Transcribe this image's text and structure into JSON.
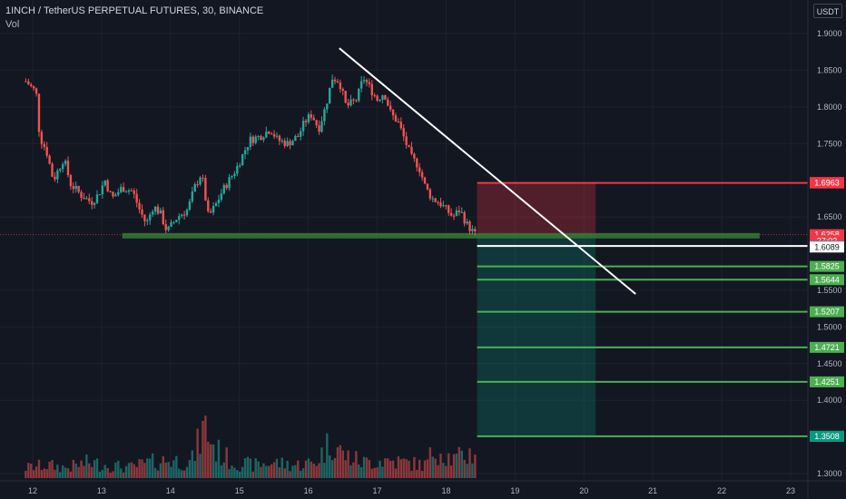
{
  "header": {
    "title": "1INCH / TetherUS PERPETUAL FUTURES, 30, BINANCE",
    "volume_label": "Vol",
    "currency": "USDT"
  },
  "chart_data": {
    "type": "candlestick",
    "symbol": "1INCH / TetherUS PERPETUAL FUTURES",
    "interval": "30",
    "exchange": "BINANCE",
    "y_axis": {
      "min": 1.3,
      "max": 1.9,
      "ticks": [
        1.9,
        1.85,
        1.8,
        1.75,
        1.65,
        1.55,
        1.5,
        1.45,
        1.4,
        1.3
      ],
      "tick_labels": [
        "1.9000",
        "1.8500",
        "1.8000",
        "1.7500",
        "1.6500",
        "1.5500",
        "1.5000",
        "1.4500",
        "1.4000",
        "1.3000"
      ]
    },
    "x_axis": {
      "ticks": [
        12,
        13,
        14,
        15,
        16,
        17,
        18,
        19,
        20,
        21,
        22,
        23
      ],
      "tick_labels": [
        "12",
        "13",
        "14",
        "15",
        "16",
        "17",
        "18",
        "19",
        "20",
        "21",
        "22",
        "23"
      ]
    },
    "price_series": [
      [
        11.9,
        1.835
      ],
      [
        12.05,
        1.82
      ],
      [
        12.1,
        1.76
      ],
      [
        12.2,
        1.74
      ],
      [
        12.3,
        1.7
      ],
      [
        12.45,
        1.73
      ],
      [
        12.55,
        1.695
      ],
      [
        12.7,
        1.68
      ],
      [
        12.85,
        1.67
      ],
      [
        12.95,
        1.68
      ],
      [
        13.05,
        1.7
      ],
      [
        13.15,
        1.675
      ],
      [
        13.3,
        1.69
      ],
      [
        13.45,
        1.685
      ],
      [
        13.55,
        1.66
      ],
      [
        13.65,
        1.64
      ],
      [
        13.75,
        1.665
      ],
      [
        13.85,
        1.655
      ],
      [
        13.95,
        1.63
      ],
      [
        14.1,
        1.65
      ],
      [
        14.25,
        1.66
      ],
      [
        14.35,
        1.69
      ],
      [
        14.45,
        1.71
      ],
      [
        14.55,
        1.65
      ],
      [
        14.65,
        1.665
      ],
      [
        14.75,
        1.685
      ],
      [
        14.85,
        1.7
      ],
      [
        14.95,
        1.715
      ],
      [
        15.05,
        1.735
      ],
      [
        15.15,
        1.755
      ],
      [
        15.3,
        1.76
      ],
      [
        15.45,
        1.77
      ],
      [
        15.55,
        1.755
      ],
      [
        15.7,
        1.75
      ],
      [
        15.85,
        1.76
      ],
      [
        15.95,
        1.78
      ],
      [
        16.05,
        1.79
      ],
      [
        16.15,
        1.77
      ],
      [
        16.25,
        1.8
      ],
      [
        16.35,
        1.84
      ],
      [
        16.45,
        1.835
      ],
      [
        16.55,
        1.8
      ],
      [
        16.7,
        1.81
      ],
      [
        16.8,
        1.84
      ],
      [
        16.9,
        1.825
      ],
      [
        17.0,
        1.81
      ],
      [
        17.1,
        1.82
      ],
      [
        17.2,
        1.79
      ],
      [
        17.3,
        1.78
      ],
      [
        17.4,
        1.755
      ],
      [
        17.5,
        1.73
      ],
      [
        17.6,
        1.72
      ],
      [
        17.7,
        1.69
      ],
      [
        17.8,
        1.675
      ],
      [
        17.9,
        1.67
      ],
      [
        18.0,
        1.66
      ],
      [
        18.1,
        1.65
      ],
      [
        18.2,
        1.66
      ],
      [
        18.3,
        1.64
      ],
      [
        18.42,
        1.6258
      ]
    ],
    "volume_series": [
      [
        11.9,
        0.2
      ],
      [
        12.2,
        0.25
      ],
      [
        12.5,
        0.2
      ],
      [
        12.8,
        0.3
      ],
      [
        13.1,
        0.25
      ],
      [
        13.4,
        0.2
      ],
      [
        13.7,
        0.3
      ],
      [
        14.0,
        0.35
      ],
      [
        14.3,
        0.3
      ],
      [
        14.5,
        1.0
      ],
      [
        14.65,
        0.55
      ],
      [
        14.9,
        0.3
      ],
      [
        15.2,
        0.25
      ],
      [
        15.5,
        0.3
      ],
      [
        15.8,
        0.25
      ],
      [
        16.1,
        0.3
      ],
      [
        16.35,
        0.75
      ],
      [
        16.5,
        0.45
      ],
      [
        16.8,
        0.3
      ],
      [
        17.1,
        0.35
      ],
      [
        17.4,
        0.3
      ],
      [
        17.7,
        0.25
      ],
      [
        17.85,
        0.6
      ],
      [
        18.1,
        0.35
      ],
      [
        18.42,
        0.5
      ]
    ],
    "horizontal_levels": [
      {
        "price": 1.6963,
        "label": "1.6963",
        "color": "#f23645"
      },
      {
        "price": 1.6104,
        "label": "1.6104",
        "color": "#ffffff"
      },
      {
        "price": 1.5825,
        "label": "1.5825",
        "color": "#4caf50"
      },
      {
        "price": 1.5644,
        "label": "1.5644",
        "color": "#4caf50"
      },
      {
        "price": 1.5207,
        "label": "1.5207",
        "color": "#4caf50"
      },
      {
        "price": 1.4721,
        "label": "1.4721",
        "color": "#4caf50"
      },
      {
        "price": 1.4251,
        "label": "1.4251",
        "color": "#4caf50"
      },
      {
        "price": 1.3509,
        "label": "1.3509",
        "color": "#4caf50"
      }
    ],
    "support_zone": {
      "x_start": 13.3,
      "x_end": 22.55,
      "price": 1.6243
    },
    "trendline": {
      "x1": 16.45,
      "y1": 1.88,
      "x2": 20.75,
      "y2": 1.545
    },
    "position": {
      "x_start": 18.45,
      "x_end": 20.17,
      "entry": 1.6258,
      "stop": 1.6963,
      "target": 1.3509,
      "stop_color": "#f23645",
      "target_color": "#089981"
    },
    "price_badges": [
      {
        "label": "1.6970",
        "price": 1.697,
        "color": "#f23645",
        "text_color": "#ffffff"
      },
      {
        "label": "1.6963",
        "price": 1.6963,
        "color": "#f23645",
        "text_color": "#ffffff"
      },
      {
        "label": "1.6258",
        "price": 1.6258,
        "color": "#f23645",
        "text_color": "#ffffff"
      },
      {
        "label": "27:03",
        "price": 1.6175,
        "color": "#f23645",
        "text_color": "#ffffff"
      },
      {
        "label": "1.6104",
        "price": 1.6104,
        "color": "#787b86",
        "text_color": "#ffffff"
      },
      {
        "label": "1.6089",
        "price": 1.6089,
        "color": "#ffffff",
        "text_color": "#131722"
      },
      {
        "label": "1.5825",
        "price": 1.5825,
        "color": "#4caf50",
        "text_color": "#ffffff"
      },
      {
        "label": "1.5644",
        "price": 1.5644,
        "color": "#4caf50",
        "text_color": "#ffffff"
      },
      {
        "label": "1.5207",
        "price": 1.5207,
        "color": "#4caf50",
        "text_color": "#ffffff"
      },
      {
        "label": "1.4721",
        "price": 1.4721,
        "color": "#4caf50",
        "text_color": "#ffffff"
      },
      {
        "label": "1.4251",
        "price": 1.4251,
        "color": "#4caf50",
        "text_color": "#ffffff"
      },
      {
        "label": "1.3509",
        "price": 1.3509,
        "color": "#4caf50",
        "text_color": "#ffffff"
      },
      {
        "label": "1.3508",
        "price": 1.3508,
        "color": "#089981",
        "text_color": "#ffffff"
      }
    ],
    "colors": {
      "up": "#26a69a",
      "down": "#ef5350",
      "background": "#131722",
      "grid": "#1e222d",
      "axis_text": "#b2b5be",
      "support": "#2e7d32"
    }
  }
}
